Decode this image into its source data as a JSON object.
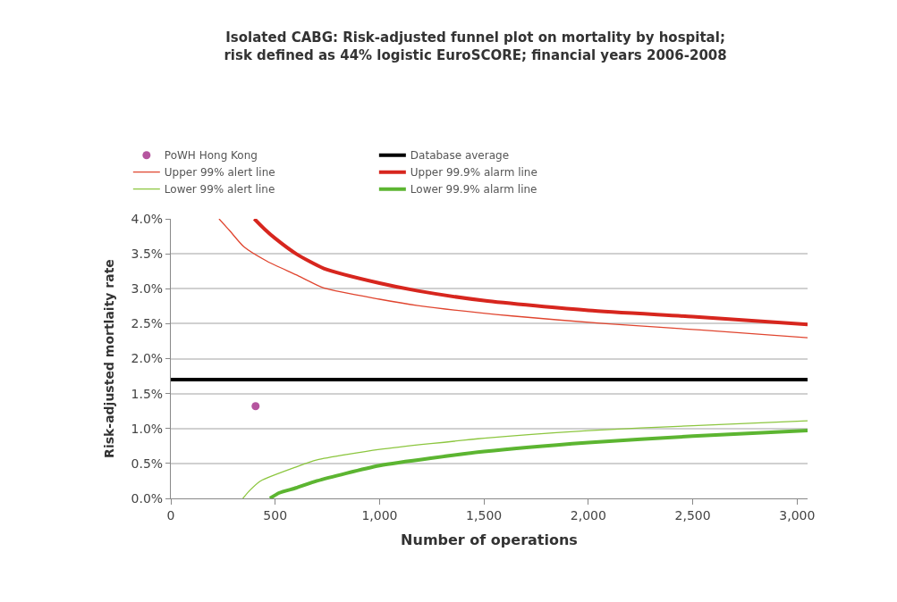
{
  "chart_data": {
    "type": "line",
    "title": "Isolated CABG: Risk-adjusted funnel plot on mortality by hospital;\nrisk defined as 44% logistic EuroSCORE; financial years 2006-2008",
    "xlabel": "Number of operations",
    "ylabel": "Risk-adjusted mortlaity rate",
    "series": [
      {
        "name": "PoWH Hong Kong",
        "type": "scatter",
        "marker": "circle",
        "color": "#b5559f",
        "x": [
          406
        ],
        "values": [
          1.32
        ]
      },
      {
        "name": "Database average",
        "color": "#000000",
        "x": [
          0,
          3050
        ],
        "values": [
          1.7,
          1.7
        ]
      },
      {
        "name": "Upper 99% alert line",
        "color": "#e0452f",
        "x": [
          231,
          282,
          350,
          463,
          600,
          733,
          1000,
          1183,
          1635,
          2084,
          2536,
          3050
        ],
        "values": [
          4.0,
          3.83,
          3.6,
          3.39,
          3.2,
          3.01,
          2.85,
          2.76,
          2.61,
          2.5,
          2.41,
          2.3
        ]
      },
      {
        "name": "Upper 99.9% alarm line",
        "color": "#d7261e",
        "x": [
          400,
          450,
          500,
          600,
          733,
          1000,
          1183,
          1500,
          2000,
          2500,
          3050
        ],
        "values": [
          4.0,
          3.85,
          3.72,
          3.5,
          3.29,
          3.08,
          2.97,
          2.83,
          2.69,
          2.6,
          2.49
        ]
      },
      {
        "name": "Lower 99% alert line",
        "color": "#8cc63f",
        "x": [
          345,
          380,
          430,
          600,
          700,
          1000,
          1500,
          2000,
          2500,
          3050
        ],
        "values": [
          0.0,
          0.12,
          0.25,
          0.45,
          0.55,
          0.7,
          0.86,
          0.97,
          1.04,
          1.11
        ]
      },
      {
        "name": "Lower 99.9% alarm line",
        "color": "#5cb531",
        "x": [
          475,
          520,
          600,
          700,
          1000,
          1500,
          2000,
          2500,
          3050
        ],
        "values": [
          0.0,
          0.08,
          0.15,
          0.25,
          0.47,
          0.67,
          0.8,
          0.89,
          0.97
        ]
      }
    ],
    "xlim": [
      0,
      3050
    ],
    "xticks": [
      0,
      500,
      {
        "value": 1000,
        "label": "1,000"
      },
      {
        "value": 1500,
        "label": "1,500"
      },
      {
        "value": 2000,
        "label": "2,000"
      },
      {
        "value": 2500,
        "label": "2,500"
      },
      {
        "value": 3000,
        "label": "3,000"
      }
    ],
    "ylim": [
      0,
      4.0
    ],
    "yticks": [
      {
        "value": 0,
        "label": "0.0%"
      },
      {
        "value": 0.5,
        "label": "0.5%"
      },
      {
        "value": 1.0,
        "label": "1.0%"
      },
      {
        "value": 1.5,
        "label": "1.5%"
      },
      {
        "value": 2.0,
        "label": "2.0%"
      },
      {
        "value": 2.5,
        "label": "2.5%"
      },
      {
        "value": 3.0,
        "label": "3.0%"
      },
      {
        "value": 3.5,
        "label": "3.5%"
      },
      {
        "value": 4.0,
        "label": "4.0%"
      }
    ],
    "grid": "y",
    "legend": "top",
    "marker": "none",
    "line_style": "solid"
  }
}
